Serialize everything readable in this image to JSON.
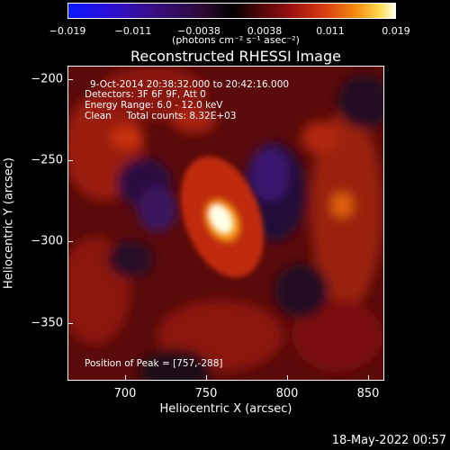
{
  "colorbar": {
    "ticks": [
      "−0.019",
      "−0.011",
      "−0.0038",
      "0.0038",
      "0.011",
      "0.019"
    ],
    "units": "(photons cm⁻² s⁻¹ asec⁻²)"
  },
  "title": "Reconstructed RHESSI Image",
  "annotations": {
    "time_range": "9-Oct-2014 20:38:32.000 to 20:42:16.000",
    "detectors": "Detectors: 3F 6F 9F, Att 0",
    "energy": "Energy Range: 6.0 - 12.0 keV",
    "clean": "Clean     Total counts: 8.32E+03",
    "peak": "Position of Peak = [757,-288]"
  },
  "axes": {
    "xlabel": "Heliocentric X (arcsec)",
    "ylabel": "Heliocentric Y (arcsec)",
    "xticks": [
      "700",
      "750",
      "800",
      "850"
    ],
    "yticks": [
      "−200",
      "−250",
      "−300",
      "−350"
    ]
  },
  "footer_timestamp": "18-May-2022 00:57",
  "colors": {
    "background": "#000000",
    "peak": "#ffffd0",
    "text": "#ffffff"
  }
}
